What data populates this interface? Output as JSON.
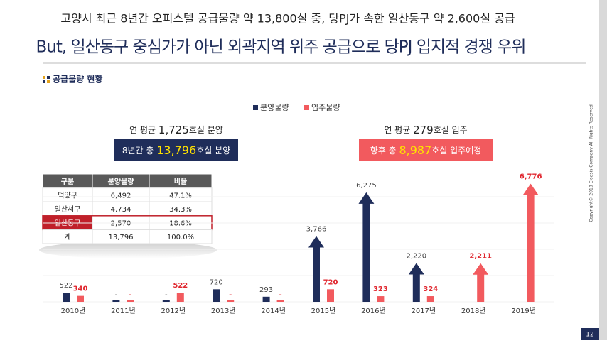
{
  "header": {
    "subtitle": "고양시 최근 8년간 오피스텔 공급물량 약 13,800실 중, 당PJ가 속한 일산동구 약 2,600실 공급",
    "title": "But, 일산동구 중심가가 아닌 외곽지역 위주 공급으로 당PJ 입지적 경쟁 우위"
  },
  "section": "공급물량 현황",
  "chart_data": {
    "type": "bar",
    "categories": [
      "2010년",
      "2011년",
      "2012년",
      "2013년",
      "2014년",
      "2015년",
      "2016년",
      "2017년",
      "2018년",
      "2019년"
    ],
    "series": [
      {
        "name": "분양물량",
        "color": "#1f2d5a",
        "values": [
          522,
          0,
          0,
          720,
          293,
          3766,
          6275,
          2220,
          null,
          null
        ],
        "value_labels": [
          "522",
          "-",
          "-",
          "720",
          "293",
          "3,766",
          "6,275",
          "2,220",
          null,
          null
        ]
      },
      {
        "name": "입주물량",
        "color": "#f25a5e",
        "values": [
          340,
          0,
          522,
          0,
          0,
          720,
          323,
          324,
          2211,
          6776
        ],
        "value_labels": [
          "340",
          "-",
          "522",
          "-",
          "-",
          "720",
          "323",
          "324",
          "2,211",
          "6,776"
        ]
      }
    ],
    "ylim": [
      0,
      6800
    ]
  },
  "callouts": [
    {
      "caption": [
        "연 평균 ",
        "1,725",
        "호실 분양"
      ],
      "box": [
        "8년간 총 ",
        "13,796",
        "호실 분양"
      ]
    },
    {
      "caption": [
        "연 평균 ",
        "279",
        "호실 입주"
      ],
      "box": [
        "향후 총 ",
        "8,987",
        "호실 입주예정"
      ]
    }
  ],
  "table": {
    "header": [
      "구분",
      "분양물량",
      "비율"
    ],
    "rows": [
      [
        "덕양구",
        "6,492",
        "47.1%"
      ],
      [
        "일산서구",
        "4,734",
        "34.3%"
      ],
      [
        "일산동구",
        "2,570",
        "18.6%"
      ],
      [
        "계",
        "13,796",
        "100.0%"
      ]
    ]
  },
  "footer": {
    "copyright": "Copyright© 2018 Eloasis Company All Rights Reserved",
    "page": "12"
  }
}
